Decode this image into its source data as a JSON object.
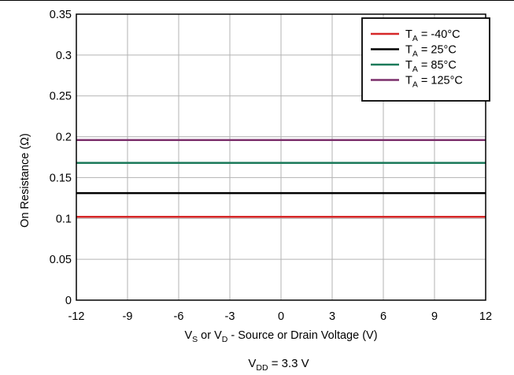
{
  "chart_data": {
    "type": "line",
    "xlabel_parts": {
      "v1": "V",
      "s1": "S",
      "mid": " or V",
      "s2": "D",
      "rest": " - Source or Drain Voltage (V)"
    },
    "ylabel": "On Resistance (Ω)",
    "xlim": [
      -12,
      12
    ],
    "ylim": [
      0,
      0.35
    ],
    "x_ticks": [
      -12,
      -9,
      -6,
      -3,
      0,
      3,
      6,
      9,
      12
    ],
    "x_tick_labels": [
      "-12",
      "-9",
      "-6",
      "-3",
      "0",
      "3",
      "6",
      "9",
      "12"
    ],
    "y_ticks": [
      0,
      0.05,
      0.1,
      0.15,
      0.2,
      0.25,
      0.3,
      0.35
    ],
    "y_tick_labels": [
      "0",
      "0.05",
      "0.1",
      "0.15",
      "0.2",
      "0.25",
      "0.3",
      "0.35"
    ],
    "grid": true,
    "legend_position": "top-right",
    "series": [
      {
        "name_main": "T",
        "name_sub": "A",
        "name_rest": " = -40°C",
        "color": "#d62728",
        "x": [
          -12,
          -6,
          0,
          6,
          12
        ],
        "values": [
          0.102,
          0.102,
          0.102,
          0.102,
          0.102
        ]
      },
      {
        "name_main": "T",
        "name_sub": "A",
        "name_rest": " = 25°C",
        "color": "#000000",
        "x": [
          -12,
          -6,
          0,
          6,
          12
        ],
        "values": [
          0.131,
          0.131,
          0.131,
          0.131,
          0.131
        ]
      },
      {
        "name_main": "T",
        "name_sub": "A",
        "name_rest": " = 85°C",
        "color": "#1b7a5a",
        "x": [
          -12,
          -6,
          0,
          6,
          12
        ],
        "values": [
          0.168,
          0.168,
          0.168,
          0.168,
          0.168
        ]
      },
      {
        "name_main": "T",
        "name_sub": "A",
        "name_rest": " = 125°C",
        "color": "#7b2f6b",
        "x": [
          -12,
          -6,
          0,
          6,
          12
        ],
        "values": [
          0.196,
          0.196,
          0.196,
          0.196,
          0.196
        ]
      }
    ],
    "caption_parts": {
      "main": "V",
      "sub": "DD",
      "rest": " = 3.3 V"
    }
  }
}
